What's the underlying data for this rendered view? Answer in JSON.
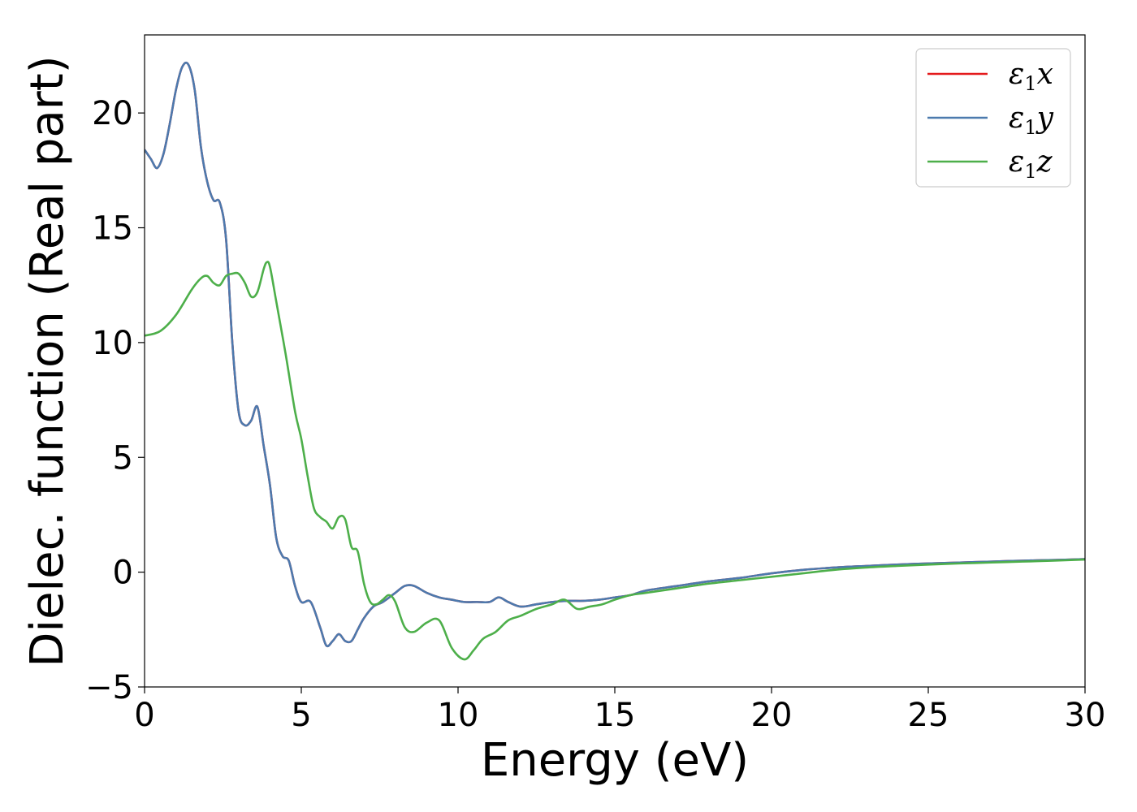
{
  "chart_data": {
    "type": "line",
    "title": "",
    "xlabel": "Energy (eV)",
    "ylabel": "Dielec. function (Real part)",
    "xlim": [
      0,
      30
    ],
    "ylim": [
      -5,
      23.4
    ],
    "xticks": [
      0,
      5,
      10,
      15,
      20,
      25,
      30
    ],
    "yticks": [
      -5,
      0,
      5,
      10,
      15,
      20
    ],
    "xtick_labels": [
      "0",
      "5",
      "10",
      "15",
      "20",
      "25",
      "30"
    ],
    "ytick_labels": [
      "−5",
      "0",
      "5",
      "10",
      "15",
      "20"
    ],
    "grid": false,
    "legend_position": "top-right",
    "series": [
      {
        "name": "ε₁x",
        "legend_base": "ε",
        "legend_sub": "1",
        "legend_tail": "x",
        "color": "#e41a1c",
        "x": [
          0,
          0.2,
          0.4,
          0.6,
          0.8,
          1.0,
          1.2,
          1.4,
          1.6,
          1.8,
          2.0,
          2.2,
          2.4,
          2.6,
          2.8,
          3.0,
          3.2,
          3.4,
          3.6,
          3.8,
          4.0,
          4.2,
          4.4,
          4.6,
          4.8,
          5.0,
          5.3,
          5.6,
          5.8,
          6.0,
          6.2,
          6.4,
          6.6,
          6.8,
          7.0,
          7.3,
          7.6,
          8.0,
          8.3,
          8.6,
          9.0,
          9.4,
          9.8,
          10.2,
          10.6,
          11.0,
          11.3,
          11.6,
          12.0,
          12.5,
          13.0,
          13.5,
          14.0,
          14.5,
          15.0,
          15.5,
          16.0,
          17.0,
          18.0,
          19.0,
          20.0,
          21.0,
          22.0,
          23.0,
          24.0,
          25.0,
          26.0,
          27.0,
          28.0,
          29.0,
          30.0
        ],
        "y": [
          18.4,
          18.0,
          17.6,
          18.2,
          19.5,
          21.0,
          22.0,
          22.1,
          21.0,
          18.5,
          17.0,
          16.2,
          16.1,
          14.5,
          10.0,
          7.0,
          6.4,
          6.6,
          7.2,
          5.5,
          3.8,
          1.5,
          0.7,
          0.5,
          -0.6,
          -1.3,
          -1.3,
          -2.4,
          -3.2,
          -3.0,
          -2.7,
          -3.0,
          -3.0,
          -2.5,
          -2.0,
          -1.5,
          -1.3,
          -0.9,
          -0.6,
          -0.6,
          -0.9,
          -1.1,
          -1.2,
          -1.3,
          -1.3,
          -1.3,
          -1.1,
          -1.3,
          -1.5,
          -1.4,
          -1.3,
          -1.25,
          -1.25,
          -1.2,
          -1.1,
          -1.0,
          -0.8,
          -0.6,
          -0.4,
          -0.25,
          -0.05,
          0.1,
          0.2,
          0.27,
          0.33,
          0.38,
          0.42,
          0.46,
          0.5,
          0.53,
          0.57
        ]
      },
      {
        "name": "ε₁y",
        "legend_base": "ε",
        "legend_sub": "1",
        "legend_tail": "y",
        "color": "#4c7aae",
        "x": [
          0,
          0.2,
          0.4,
          0.6,
          0.8,
          1.0,
          1.2,
          1.4,
          1.6,
          1.8,
          2.0,
          2.2,
          2.4,
          2.6,
          2.8,
          3.0,
          3.2,
          3.4,
          3.6,
          3.8,
          4.0,
          4.2,
          4.4,
          4.6,
          4.8,
          5.0,
          5.3,
          5.6,
          5.8,
          6.0,
          6.2,
          6.4,
          6.6,
          6.8,
          7.0,
          7.3,
          7.6,
          8.0,
          8.3,
          8.6,
          9.0,
          9.4,
          9.8,
          10.2,
          10.6,
          11.0,
          11.3,
          11.6,
          12.0,
          12.5,
          13.0,
          13.5,
          14.0,
          14.5,
          15.0,
          15.5,
          16.0,
          17.0,
          18.0,
          19.0,
          20.0,
          21.0,
          22.0,
          23.0,
          24.0,
          25.0,
          26.0,
          27.0,
          28.0,
          29.0,
          30.0
        ],
        "y": [
          18.4,
          18.0,
          17.6,
          18.2,
          19.5,
          21.0,
          22.0,
          22.1,
          21.0,
          18.5,
          17.0,
          16.2,
          16.1,
          14.5,
          10.0,
          7.0,
          6.4,
          6.6,
          7.2,
          5.5,
          3.8,
          1.5,
          0.7,
          0.5,
          -0.6,
          -1.3,
          -1.3,
          -2.4,
          -3.2,
          -3.0,
          -2.7,
          -3.0,
          -3.0,
          -2.5,
          -2.0,
          -1.5,
          -1.3,
          -0.9,
          -0.6,
          -0.6,
          -0.9,
          -1.1,
          -1.2,
          -1.3,
          -1.3,
          -1.3,
          -1.1,
          -1.3,
          -1.5,
          -1.4,
          -1.3,
          -1.25,
          -1.25,
          -1.2,
          -1.1,
          -1.0,
          -0.8,
          -0.6,
          -0.4,
          -0.25,
          -0.05,
          0.1,
          0.2,
          0.27,
          0.33,
          0.38,
          0.42,
          0.46,
          0.5,
          0.53,
          0.57
        ]
      },
      {
        "name": "ε₁z",
        "legend_base": "ε",
        "legend_sub": "1",
        "legend_tail": "z",
        "color": "#4daf4a",
        "x": [
          0,
          0.5,
          1.0,
          1.5,
          1.8,
          2.0,
          2.2,
          2.4,
          2.6,
          2.8,
          3.0,
          3.2,
          3.4,
          3.6,
          3.8,
          3.9,
          4.0,
          4.2,
          4.5,
          4.8,
          5.0,
          5.2,
          5.4,
          5.6,
          5.8,
          6.0,
          6.2,
          6.4,
          6.6,
          6.8,
          7.0,
          7.2,
          7.4,
          7.6,
          7.8,
          8.0,
          8.3,
          8.6,
          9.0,
          9.4,
          9.8,
          10.2,
          10.5,
          10.8,
          11.2,
          11.6,
          12.0,
          12.5,
          13.0,
          13.4,
          13.8,
          14.2,
          14.6,
          15.0,
          15.5,
          16.0,
          17.0,
          18.0,
          19.0,
          20.0,
          21.0,
          22.0,
          23.0,
          24.0,
          25.0,
          26.0,
          27.0,
          28.0,
          29.0,
          30.0
        ],
        "y": [
          10.3,
          10.5,
          11.2,
          12.3,
          12.8,
          12.9,
          12.6,
          12.5,
          12.9,
          13.0,
          13.0,
          12.6,
          12.0,
          12.2,
          13.2,
          13.5,
          13.3,
          11.8,
          9.5,
          7.0,
          5.8,
          4.2,
          2.8,
          2.4,
          2.2,
          1.9,
          2.4,
          2.3,
          1.1,
          0.9,
          -0.5,
          -1.3,
          -1.4,
          -1.2,
          -1.0,
          -1.3,
          -2.4,
          -2.6,
          -2.2,
          -2.1,
          -3.3,
          -3.8,
          -3.4,
          -2.9,
          -2.6,
          -2.1,
          -1.9,
          -1.6,
          -1.4,
          -1.2,
          -1.6,
          -1.5,
          -1.4,
          -1.2,
          -1.0,
          -0.9,
          -0.7,
          -0.5,
          -0.35,
          -0.2,
          -0.05,
          0.1,
          0.2,
          0.27,
          0.33,
          0.38,
          0.42,
          0.46,
          0.5,
          0.55
        ]
      }
    ]
  }
}
